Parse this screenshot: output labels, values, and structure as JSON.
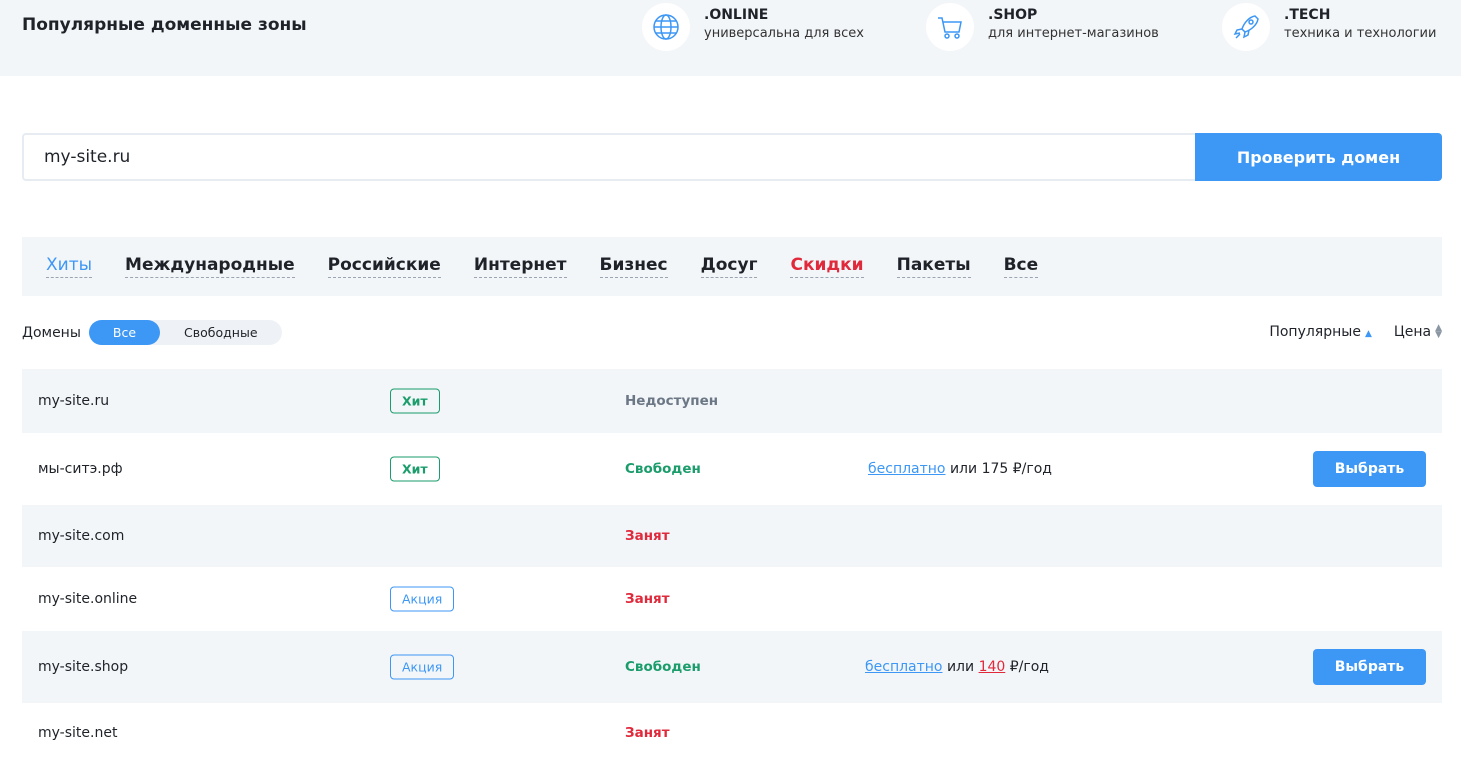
{
  "header": {
    "title": "Популярные доменные зоны",
    "zones": [
      {
        "name": ".ONLINE",
        "desc": "универсальна для всех",
        "icon": "globe-icon"
      },
      {
        "name": ".SHOP",
        "desc": "для интернет-магазинов",
        "icon": "cart-icon"
      },
      {
        "name": ".TECH",
        "desc": "техника и технологии",
        "icon": "rocket-icon"
      }
    ]
  },
  "search": {
    "value": "my-site.ru",
    "button": "Проверить домен"
  },
  "tabs": [
    "Хиты",
    "Международные",
    "Российские",
    "Интернет",
    "Бизнес",
    "Досуг",
    "Скидки",
    "Пакеты",
    "Все"
  ],
  "filter": {
    "label": "Домены",
    "options": [
      "Все",
      "Свободные"
    ]
  },
  "sort": {
    "popular": "Популярные",
    "price": "Цена"
  },
  "colors": {
    "accent": "#3d97f5",
    "free": "#1a9c6b",
    "busy": "#e02a3c",
    "unavailable": "#6b7785"
  },
  "rows": [
    {
      "name": "my-site.ru",
      "badge": "Хит",
      "status": "Недоступен"
    },
    {
      "name": "мы-ситэ.рф",
      "badge": "Хит",
      "status": "Свободен",
      "free": "бесплатно",
      "or": "или",
      "price": "175",
      "unit": "₽/год",
      "button": "Выбрать"
    },
    {
      "name": "my-site.com",
      "status": "Занят"
    },
    {
      "name": "my-site.online",
      "badge": "Акция",
      "status": "Занят"
    },
    {
      "name": "my-site.shop",
      "badge": "Акция",
      "status": "Свободен",
      "free": "бесплатно",
      "or": "или",
      "price": "140",
      "unit": "₽/год",
      "button": "Выбрать"
    },
    {
      "name": "my-site.net",
      "status": "Занят"
    }
  ]
}
